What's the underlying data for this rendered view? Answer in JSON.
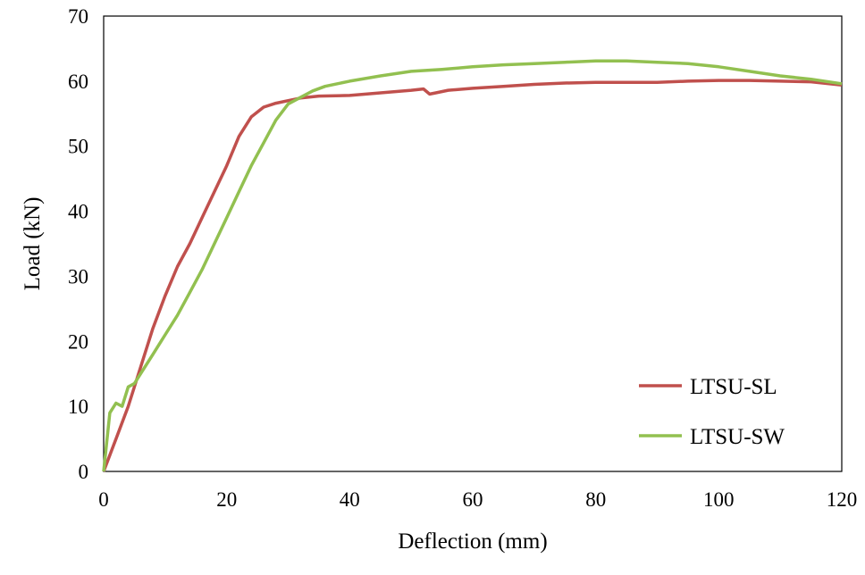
{
  "chart_data": {
    "type": "line",
    "title": "",
    "xlabel": "Deflection (mm)",
    "ylabel": "Load (kN)",
    "xlim": [
      0,
      120
    ],
    "ylim": [
      0,
      70
    ],
    "x_ticks": [
      "0",
      "20",
      "40",
      "60",
      "80",
      "100",
      "120"
    ],
    "y_ticks": [
      "0",
      "10",
      "20",
      "30",
      "40",
      "50",
      "60",
      "70"
    ],
    "grid": false,
    "legend_position": "bottom-right",
    "series": [
      {
        "name": "LTSU-SL",
        "color": "#c0504d",
        "points": [
          [
            0,
            0
          ],
          [
            2,
            5
          ],
          [
            4,
            10
          ],
          [
            6,
            16
          ],
          [
            8,
            22
          ],
          [
            10,
            27
          ],
          [
            12,
            31.5
          ],
          [
            14,
            35
          ],
          [
            16,
            39
          ],
          [
            18,
            43
          ],
          [
            20,
            47
          ],
          [
            22,
            51.5
          ],
          [
            24,
            54.5
          ],
          [
            26,
            56
          ],
          [
            28,
            56.6
          ],
          [
            30,
            57
          ],
          [
            32,
            57.4
          ],
          [
            35,
            57.7
          ],
          [
            40,
            57.8
          ],
          [
            45,
            58.2
          ],
          [
            50,
            58.6
          ],
          [
            52,
            58.8
          ],
          [
            53,
            58
          ],
          [
            54,
            58.2
          ],
          [
            56,
            58.6
          ],
          [
            60,
            58.9
          ],
          [
            65,
            59.2
          ],
          [
            70,
            59.5
          ],
          [
            75,
            59.7
          ],
          [
            80,
            59.8
          ],
          [
            85,
            59.8
          ],
          [
            90,
            59.8
          ],
          [
            95,
            60
          ],
          [
            100,
            60.1
          ],
          [
            105,
            60.1
          ],
          [
            110,
            60
          ],
          [
            115,
            59.9
          ],
          [
            120,
            59.4
          ]
        ]
      },
      {
        "name": "LTSU-SW",
        "color": "#92c050",
        "points": [
          [
            0,
            0
          ],
          [
            1,
            9
          ],
          [
            2,
            10.5
          ],
          [
            3,
            10
          ],
          [
            4,
            13
          ],
          [
            5,
            13.5
          ],
          [
            6,
            15
          ],
          [
            8,
            18
          ],
          [
            10,
            21
          ],
          [
            12,
            24
          ],
          [
            14,
            27.5
          ],
          [
            16,
            31
          ],
          [
            18,
            35
          ],
          [
            20,
            39
          ],
          [
            22,
            43
          ],
          [
            24,
            47
          ],
          [
            26,
            50.5
          ],
          [
            28,
            54
          ],
          [
            30,
            56.5
          ],
          [
            32,
            57.5
          ],
          [
            34,
            58.5
          ],
          [
            36,
            59.2
          ],
          [
            40,
            60
          ],
          [
            45,
            60.8
          ],
          [
            50,
            61.5
          ],
          [
            55,
            61.8
          ],
          [
            60,
            62.2
          ],
          [
            65,
            62.5
          ],
          [
            70,
            62.7
          ],
          [
            75,
            62.9
          ],
          [
            80,
            63.1
          ],
          [
            85,
            63.1
          ],
          [
            90,
            62.9
          ],
          [
            95,
            62.7
          ],
          [
            100,
            62.2
          ],
          [
            105,
            61.5
          ],
          [
            110,
            60.8
          ],
          [
            115,
            60.3
          ],
          [
            120,
            59.6
          ]
        ]
      }
    ]
  }
}
